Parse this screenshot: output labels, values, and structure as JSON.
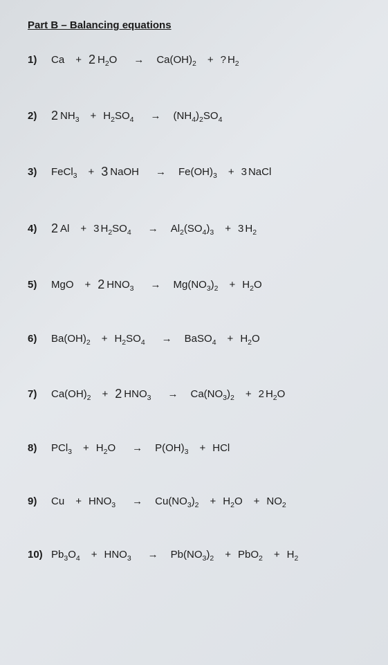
{
  "title": "Part B – Balancing equations",
  "arrow_glyph": "→",
  "plus_glyph": "+",
  "equations": [
    {
      "num": "1)",
      "tokens": [
        {
          "t": "Ca"
        },
        {
          "op": "+"
        },
        {
          "c": "2"
        },
        {
          "f": "H2O"
        },
        {
          "arr": true
        },
        {
          "f": "Ca(OH)2"
        },
        {
          "op": "+"
        },
        {
          "c": "?",
          "small": true
        },
        {
          "f": "H2"
        }
      ]
    },
    {
      "num": "2)",
      "tokens": [
        {
          "c": "2"
        },
        {
          "f": "NH3"
        },
        {
          "op": "+"
        },
        {
          "f": "H2SO4"
        },
        {
          "arr": true
        },
        {
          "f": "(NH4)2SO4"
        }
      ]
    },
    {
      "num": "3)",
      "tokens": [
        {
          "f": "FeCl3"
        },
        {
          "op": "+"
        },
        {
          "c": "3"
        },
        {
          "t": "NaOH"
        },
        {
          "arr": true
        },
        {
          "f": "Fe(OH)3"
        },
        {
          "op": "+"
        },
        {
          "c": "3",
          "small": true
        },
        {
          "t": "NaCl"
        }
      ]
    },
    {
      "num": "4)",
      "tokens": [
        {
          "c": "2"
        },
        {
          "t": "Al"
        },
        {
          "op": "+"
        },
        {
          "c": "3",
          "small": true
        },
        {
          "f": "H2SO4"
        },
        {
          "arr": true
        },
        {
          "f": "Al2(SO4)3"
        },
        {
          "op": "+"
        },
        {
          "c": "3",
          "small": true
        },
        {
          "f": "H2"
        }
      ]
    },
    {
      "num": "5)",
      "tokens": [
        {
          "t": "MgO"
        },
        {
          "op": "+"
        },
        {
          "c": "2"
        },
        {
          "f": "HNO3"
        },
        {
          "arr": true
        },
        {
          "f": "Mg(NO3)2"
        },
        {
          "op": "+"
        },
        {
          "f": "H2O"
        }
      ]
    },
    {
      "num": "6)",
      "tokens": [
        {
          "f": "Ba(OH)2"
        },
        {
          "op": "+"
        },
        {
          "f": "H2SO4"
        },
        {
          "arr": true
        },
        {
          "f": "BaSO4"
        },
        {
          "op": "+"
        },
        {
          "f": "H2O"
        }
      ]
    },
    {
      "num": "7)",
      "tokens": [
        {
          "f": "Ca(OH)2"
        },
        {
          "op": "+"
        },
        {
          "c": "2"
        },
        {
          "f": "HNO3"
        },
        {
          "arr": true
        },
        {
          "f": "Ca(NO3)2"
        },
        {
          "op": "+"
        },
        {
          "c": "2",
          "small": true
        },
        {
          "f": "H2O"
        }
      ]
    },
    {
      "num": "8)",
      "tokens": [
        {
          "f": "PCl3"
        },
        {
          "op": "+"
        },
        {
          "f": "H2O"
        },
        {
          "arr": true
        },
        {
          "f": "P(OH)3"
        },
        {
          "op": "+"
        },
        {
          "t": "HCl"
        }
      ]
    },
    {
      "num": "9)",
      "tokens": [
        {
          "t": "Cu"
        },
        {
          "op": "+"
        },
        {
          "f": "HNO3"
        },
        {
          "arr": true
        },
        {
          "f": "Cu(NO3)2"
        },
        {
          "op": "+"
        },
        {
          "f": "H2O"
        },
        {
          "op": "+"
        },
        {
          "f": "NO2"
        }
      ]
    },
    {
      "num": "10)",
      "tokens": [
        {
          "f": "Pb3O4"
        },
        {
          "op": "+"
        },
        {
          "f": "HNO3"
        },
        {
          "arr": true
        },
        {
          "f": "Pb(NO3)2"
        },
        {
          "op": "+"
        },
        {
          "f": "PbO2"
        },
        {
          "op": "+"
        },
        {
          "f": "H2"
        }
      ]
    }
  ]
}
